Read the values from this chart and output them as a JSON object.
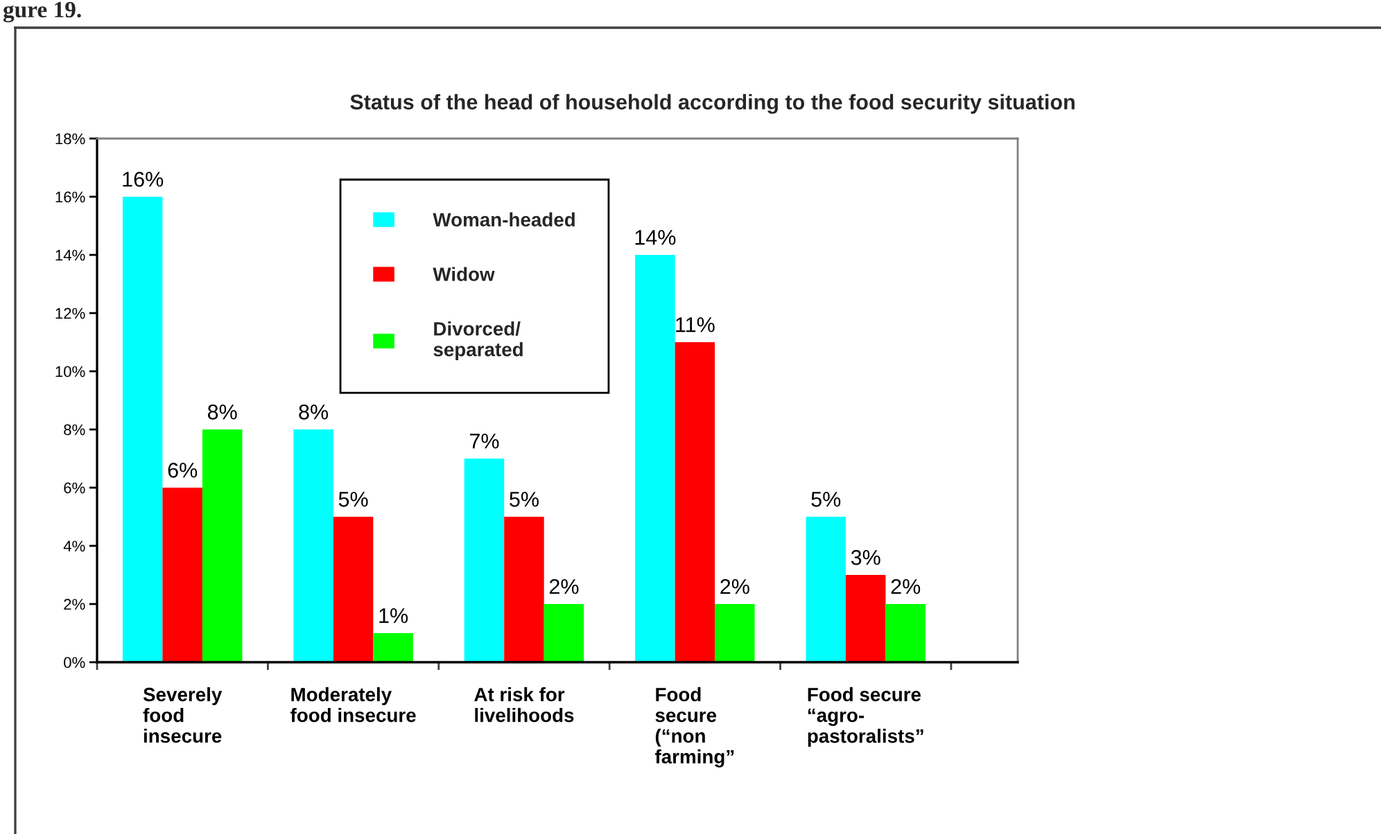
{
  "chart_data": {
    "type": "bar",
    "title": "Status of the head of household according to the food security situation",
    "categories": [
      "Severely\nfood\ninsecure",
      "Moderately\nfood insecure",
      "At risk for\nlivelihoods",
      "Food\nsecure\n(“non\nfarming”",
      "Food secure\n“agro-\npastoralists”"
    ],
    "series": [
      {
        "name": "Woman-headed",
        "color": "#00ffff",
        "values": [
          16,
          8,
          7,
          14,
          5
        ],
        "value_labels": [
          "16%",
          "8%",
          "7%",
          "14%",
          "5%"
        ]
      },
      {
        "name": "Widow",
        "color": "#ff0000",
        "values": [
          6,
          5,
          5,
          11,
          3
        ],
        "value_labels": [
          "6%",
          "5%",
          "5%",
          "11%",
          "3%"
        ]
      },
      {
        "name": "Divorced/\nseparated",
        "color": "#00ff00",
        "values": [
          8,
          1,
          2,
          2,
          2
        ],
        "value_labels": [
          "8%",
          "1%",
          "2%",
          "2%",
          "2%"
        ]
      }
    ],
    "ylim": [
      0,
      18
    ],
    "yticks": [
      {
        "value": 0,
        "label": "0%"
      },
      {
        "value": 2,
        "label": "2%"
      },
      {
        "value": 4,
        "label": "4%"
      },
      {
        "value": 6,
        "label": "6%"
      },
      {
        "value": 8,
        "label": "8%"
      },
      {
        "value": 10,
        "label": "10%"
      },
      {
        "value": 12,
        "label": "12%"
      },
      {
        "value": 14,
        "label": "14%"
      },
      {
        "value": 16,
        "label": "16%"
      },
      {
        "value": 18,
        "label": "18%"
      }
    ],
    "legend": "top",
    "annotations": [
      "gure 19."
    ]
  }
}
